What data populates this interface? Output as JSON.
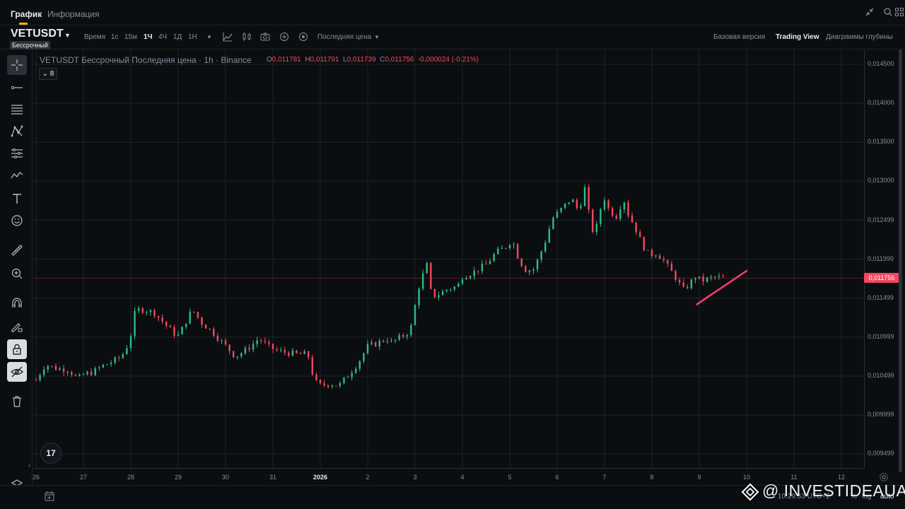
{
  "tabs": [
    {
      "label": "График",
      "active": true
    },
    {
      "label": "Информация",
      "active": false
    }
  ],
  "top_icons": [
    "collapse-icon",
    "fullscreen-icon",
    "layout-grid-icon"
  ],
  "toolbar": {
    "symbol": "VETUSDT",
    "badge": "Бессрочный",
    "time_label": "Время",
    "intervals": [
      "1с",
      "15м",
      "1Ч",
      "4Ч",
      "1Д",
      "1Н"
    ],
    "active_interval": "1Ч",
    "price_type": "Последняя цена",
    "views": [
      "Базовая версия",
      "Trading View",
      "Диаграммы глубины"
    ],
    "active_view": "Trading View"
  },
  "legend": {
    "title": "VETUSDT Бессрочный Последняя цена · 1h · Binance",
    "open_label": "O",
    "open": "0,011781",
    "high_label": "H",
    "high": "0,011791",
    "low_label": "L",
    "low": "0,011739",
    "close_label": "C",
    "close": "0,011756",
    "change": "-0,000024 (-0.21%)",
    "indicators_count": "8"
  },
  "tv_logo": "17",
  "colors": {
    "background": "#0b0e11",
    "up": "#2ebd85",
    "down": "#f6465d",
    "grid": "#1e2329",
    "trendline": "#f23c6a"
  },
  "chart_data": {
    "type": "candlestick",
    "title": "",
    "price_ticks": [
      "0,014500",
      "0,014000",
      "0,013500",
      "0,013000",
      "0,012499",
      "0,011999",
      "0,011499",
      "0,010999",
      "0,010499",
      "0,009999",
      "0,009499"
    ],
    "price_tick_values": [
      0.0145,
      0.014,
      0.0135,
      0.013,
      0.012499,
      0.011999,
      0.011499,
      0.010999,
      0.010499,
      0.009999,
      0.009499
    ],
    "ylim": [
      0.00932,
      0.01469
    ],
    "current_price": "0,011756",
    "current_price_value": 0.011756,
    "time_ticks": [
      "26",
      "27",
      "28",
      "29",
      "30",
      "31",
      "2026",
      "2",
      "3",
      "4",
      "5",
      "6",
      "7",
      "8",
      "9",
      "10",
      "11",
      "12"
    ],
    "time_tick_bold": "2026",
    "xlim_days": [
      0,
      17.5
    ],
    "close_path": [
      [
        0.0,
        0.01045
      ],
      [
        0.2,
        0.01065
      ],
      [
        0.4,
        0.0106
      ],
      [
        0.7,
        0.01058
      ],
      [
        0.8,
        0.0105
      ],
      [
        0.9,
        0.01047
      ],
      [
        1.0,
        0.01052
      ],
      [
        1.2,
        0.01055
      ],
      [
        1.4,
        0.01063
      ],
      [
        1.6,
        0.01068
      ],
      [
        1.8,
        0.01075
      ],
      [
        1.9,
        0.01085
      ],
      [
        2.0,
        0.01103
      ],
      [
        2.1,
        0.01135
      ],
      [
        2.3,
        0.01135
      ],
      [
        2.5,
        0.01131
      ],
      [
        2.7,
        0.01118
      ],
      [
        2.9,
        0.01105
      ],
      [
        3.0,
        0.01102
      ],
      [
        3.1,
        0.01112
      ],
      [
        3.2,
        0.01125
      ],
      [
        3.3,
        0.01135
      ],
      [
        3.5,
        0.01118
      ],
      [
        3.7,
        0.01108
      ],
      [
        3.9,
        0.01095
      ],
      [
        4.1,
        0.01082
      ],
      [
        4.2,
        0.01075
      ],
      [
        4.4,
        0.01082
      ],
      [
        4.6,
        0.01092
      ],
      [
        4.7,
        0.01098
      ],
      [
        4.9,
        0.01088
      ],
      [
        5.1,
        0.01082
      ],
      [
        5.3,
        0.0108
      ],
      [
        5.5,
        0.01078
      ],
      [
        5.7,
        0.01078
      ],
      [
        5.8,
        0.01072
      ],
      [
        5.85,
        0.01045
      ],
      [
        6.0,
        0.01038
      ],
      [
        6.2,
        0.0104
      ],
      [
        6.4,
        0.01038
      ],
      [
        6.6,
        0.01052
      ],
      [
        6.8,
        0.01067
      ],
      [
        7.0,
        0.01088
      ],
      [
        7.2,
        0.01092
      ],
      [
        7.4,
        0.01098
      ],
      [
        7.5,
        0.01093
      ],
      [
        7.7,
        0.011
      ],
      [
        7.9,
        0.01108
      ],
      [
        8.0,
        0.0114
      ],
      [
        8.1,
        0.0117
      ],
      [
        8.25,
        0.01192
      ],
      [
        8.35,
        0.01152
      ],
      [
        8.5,
        0.01155
      ],
      [
        8.7,
        0.01162
      ],
      [
        8.9,
        0.01165
      ],
      [
        9.0,
        0.01178
      ],
      [
        9.2,
        0.01182
      ],
      [
        9.3,
        0.01186
      ],
      [
        9.5,
        0.01193
      ],
      [
        9.7,
        0.01208
      ],
      [
        9.9,
        0.01215
      ],
      [
        10.05,
        0.01225
      ],
      [
        10.2,
        0.01198
      ],
      [
        10.35,
        0.01185
      ],
      [
        10.5,
        0.01187
      ],
      [
        10.6,
        0.012
      ],
      [
        10.75,
        0.01223
      ],
      [
        10.9,
        0.01252
      ],
      [
        11.1,
        0.01265
      ],
      [
        11.3,
        0.01278
      ],
      [
        11.45,
        0.01262
      ],
      [
        11.55,
        0.01282
      ],
      [
        11.6,
        0.01295
      ],
      [
        11.7,
        0.01242
      ],
      [
        11.8,
        0.01232
      ],
      [
        11.9,
        0.01262
      ],
      [
        12.0,
        0.01278
      ],
      [
        12.1,
        0.01262
      ],
      [
        12.25,
        0.01255
      ],
      [
        12.4,
        0.01278
      ],
      [
        12.5,
        0.01258
      ],
      [
        12.65,
        0.0124
      ],
      [
        12.8,
        0.01218
      ],
      [
        12.95,
        0.01205
      ],
      [
        13.1,
        0.01208
      ],
      [
        13.25,
        0.01198
      ],
      [
        13.4,
        0.01185
      ],
      [
        13.55,
        0.01172
      ],
      [
        13.65,
        0.0116
      ],
      [
        13.8,
        0.01168
      ],
      [
        13.9,
        0.01178
      ],
      [
        14.05,
        0.01172
      ],
      [
        14.2,
        0.01175
      ],
      [
        14.35,
        0.01177
      ],
      [
        14.45,
        0.01176
      ],
      [
        14.5,
        0.011756
      ]
    ],
    "trendline": [
      [
        13.95,
        0.01142
      ],
      [
        15.0,
        0.01185
      ]
    ]
  }
}
